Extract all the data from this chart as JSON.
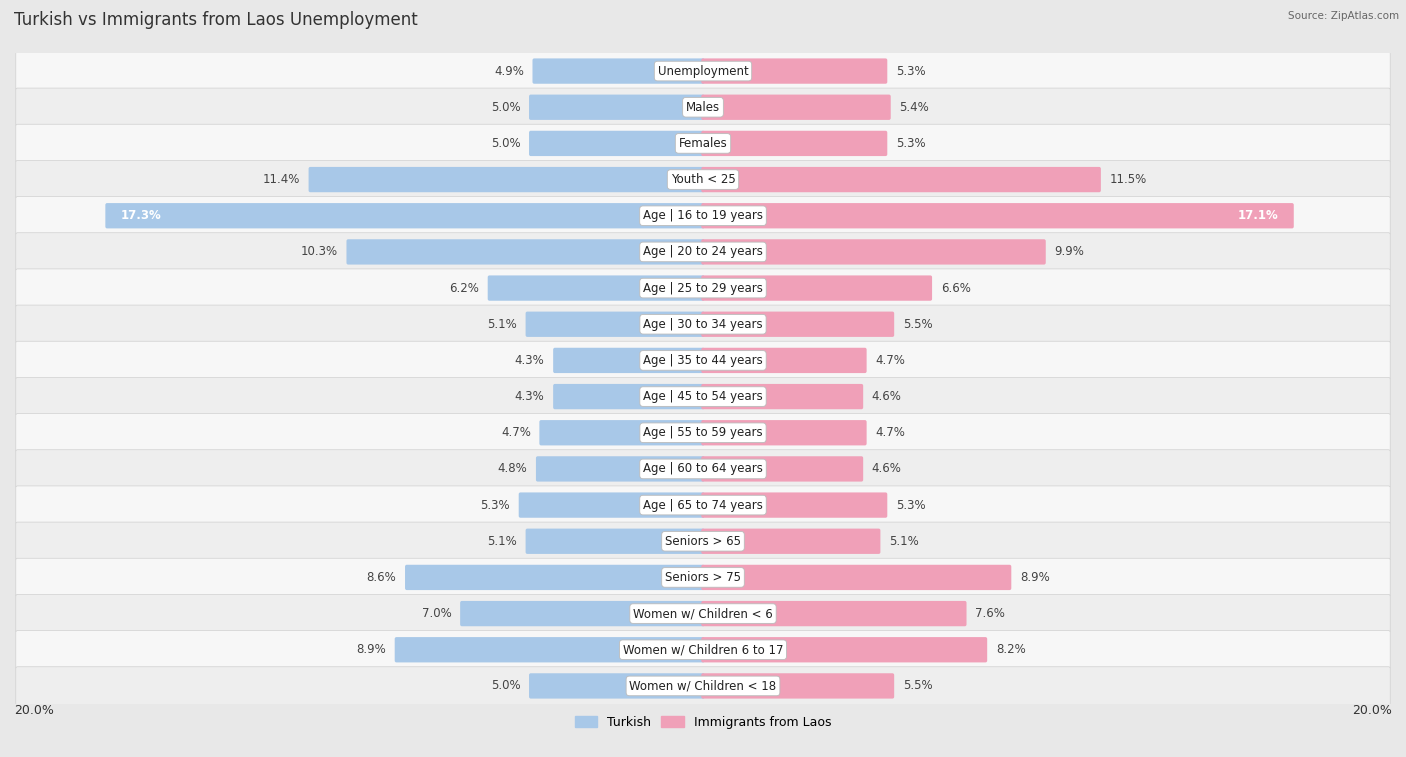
{
  "title": "Turkish vs Immigrants from Laos Unemployment",
  "source": "Source: ZipAtlas.com",
  "categories": [
    "Unemployment",
    "Males",
    "Females",
    "Youth < 25",
    "Age | 16 to 19 years",
    "Age | 20 to 24 years",
    "Age | 25 to 29 years",
    "Age | 30 to 34 years",
    "Age | 35 to 44 years",
    "Age | 45 to 54 years",
    "Age | 55 to 59 years",
    "Age | 60 to 64 years",
    "Age | 65 to 74 years",
    "Seniors > 65",
    "Seniors > 75",
    "Women w/ Children < 6",
    "Women w/ Children 6 to 17",
    "Women w/ Children < 18"
  ],
  "turkish": [
    4.9,
    5.0,
    5.0,
    11.4,
    17.3,
    10.3,
    6.2,
    5.1,
    4.3,
    4.3,
    4.7,
    4.8,
    5.3,
    5.1,
    8.6,
    7.0,
    8.9,
    5.0
  ],
  "laos": [
    5.3,
    5.4,
    5.3,
    11.5,
    17.1,
    9.9,
    6.6,
    5.5,
    4.7,
    4.6,
    4.7,
    4.6,
    5.3,
    5.1,
    8.9,
    7.6,
    8.2,
    5.5
  ],
  "turkish_color": "#a8c8e8",
  "laos_color": "#f0a0b8",
  "bg_color": "#e8e8e8",
  "row_light": "#f7f7f7",
  "row_dark": "#eeeeee",
  "axis_max": 20.0,
  "title_fontsize": 12,
  "label_fontsize": 8.5,
  "value_fontsize": 8.5,
  "legend_turkish": "Turkish",
  "legend_laos": "Immigrants from Laos"
}
